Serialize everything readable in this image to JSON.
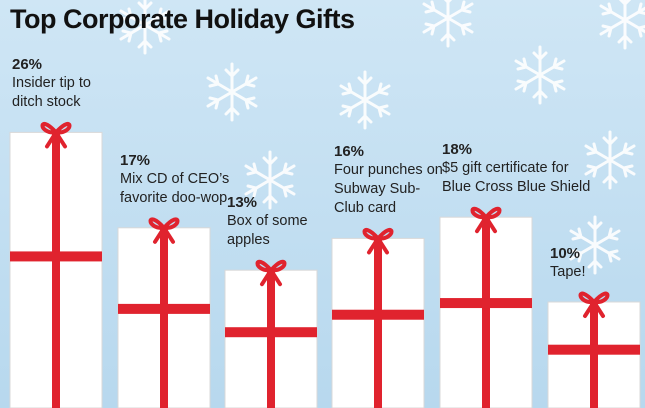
{
  "chart_data": {
    "type": "bar",
    "title": "Top Corporate Holiday Gifts",
    "categories": [
      "Insider tip to ditch stock",
      "Mix CD of CEO’s favorite doo-wop",
      "Box of some apples",
      "Four punches on Subway Sub-Club card",
      "$5 gift certificate for Blue Cross Blue Shield",
      "Tape!"
    ],
    "values": [
      26,
      17,
      13,
      16,
      18,
      10
    ],
    "value_labels": [
      "26%",
      "17%",
      "13%",
      "16%",
      "18%",
      "10%"
    ],
    "color": "#ffffff",
    "ribbon_color": "#e0232e"
  }
}
